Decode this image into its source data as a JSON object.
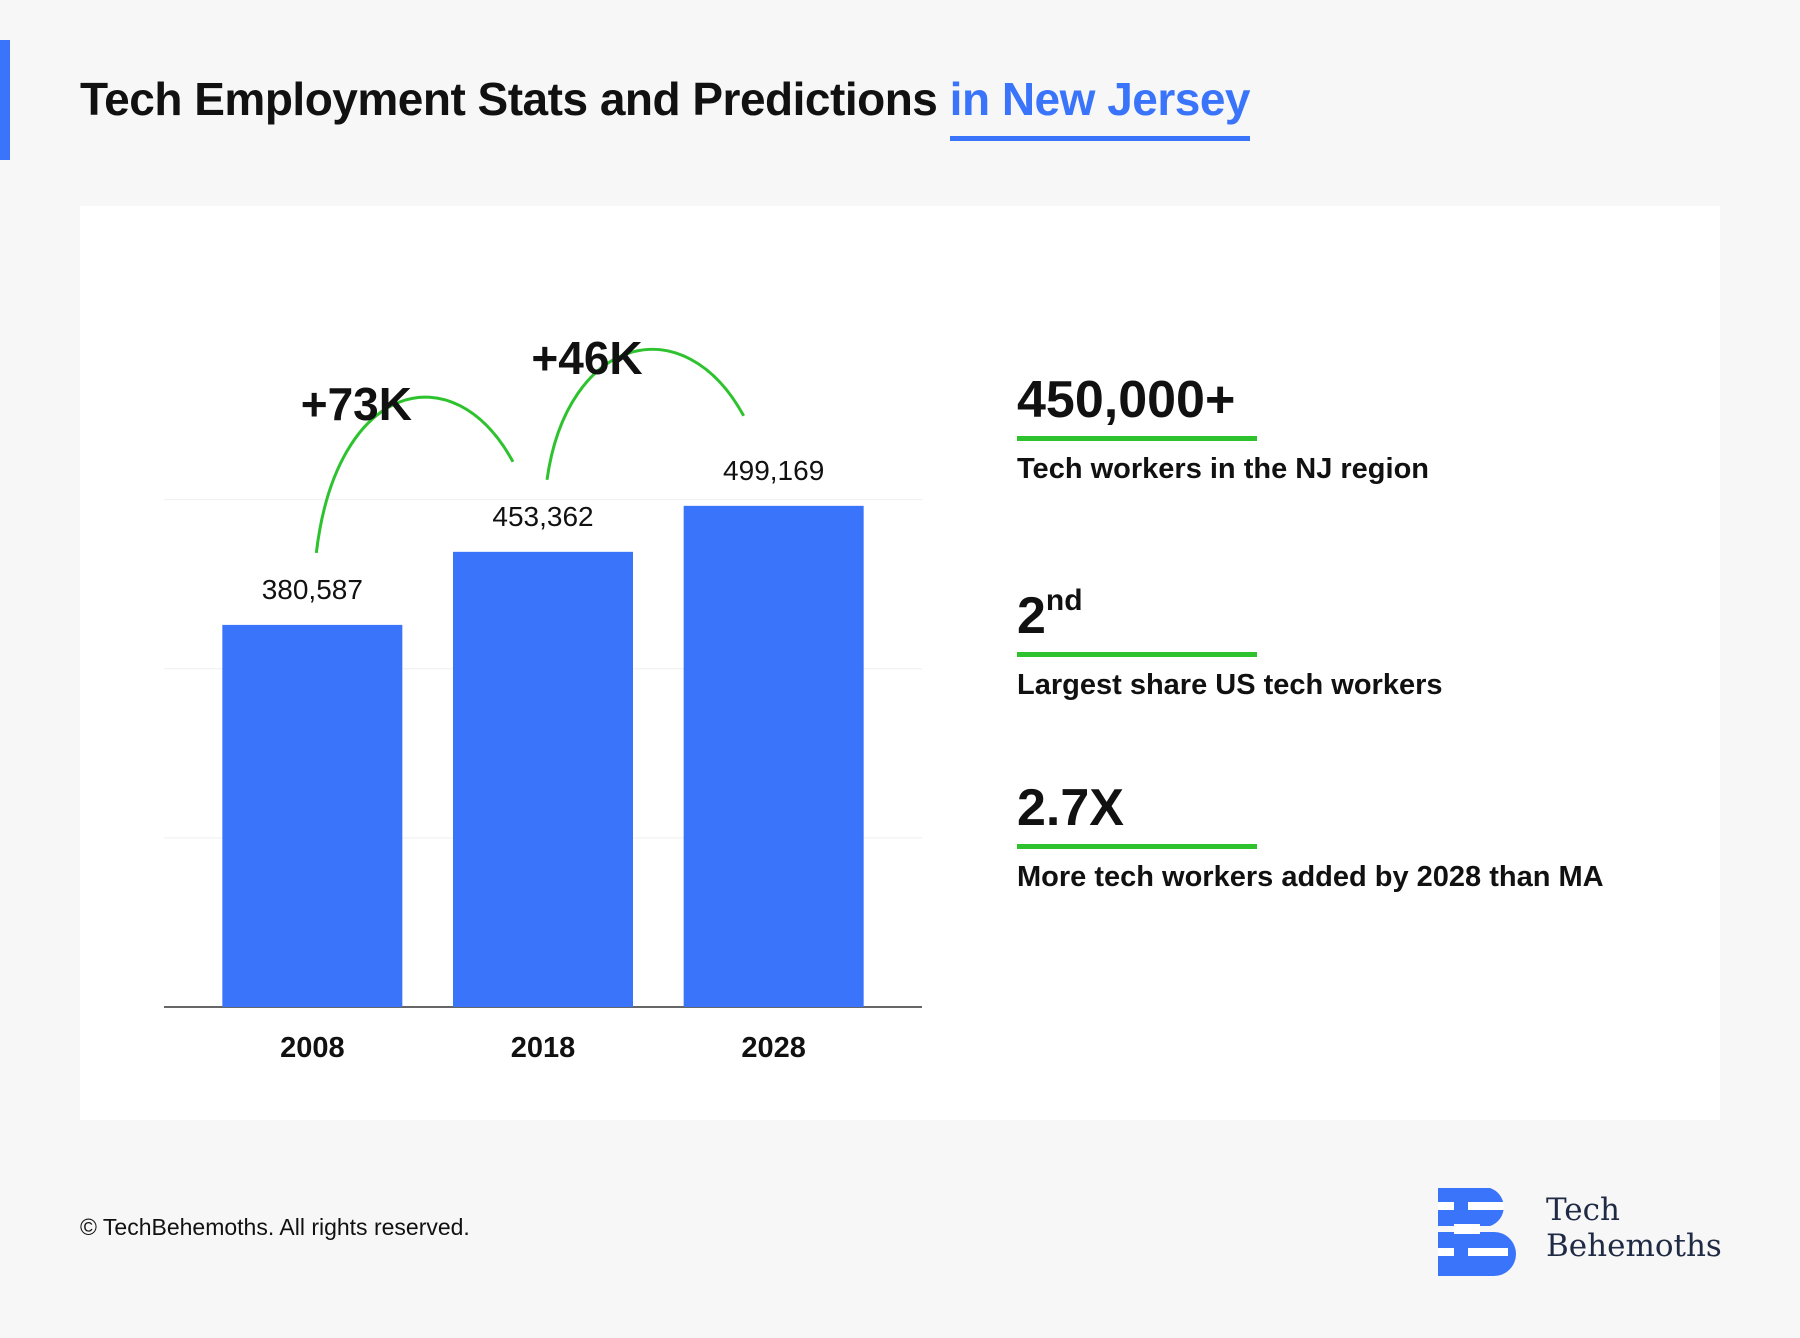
{
  "header": {
    "title_main": "Tech Employment Stats and Predictions",
    "title_highlight": "in New Jersey",
    "accent_color": "#3a74fb"
  },
  "chart_data": {
    "type": "bar",
    "title": "Tech Employment Stats and Predictions in New Jersey",
    "categories": [
      "2008",
      "2018",
      "2028"
    ],
    "values": [
      380587,
      453362,
      499169
    ],
    "value_labels": [
      "380,587",
      "453,362",
      "499,169"
    ],
    "ylim": [
      0,
      502000
    ],
    "grid": true,
    "bar_color": "#3a74fb",
    "annotations": [
      {
        "from": "2008",
        "to": "2018",
        "label": "+73K"
      },
      {
        "from": "2018",
        "to": "2028",
        "label": "+46K"
      }
    ],
    "annotation_color": "#2ec32e"
  },
  "stats": [
    {
      "value": "450,000+",
      "label": "Tech workers in the NJ region"
    },
    {
      "value": "2",
      "value_sup": "nd",
      "label": "Largest share US tech workers"
    },
    {
      "value": "2.7X",
      "label": "More tech workers added by 2028 than MA"
    }
  ],
  "footer": {
    "copyright": "© TechBehemoths. All rights reserved.",
    "logo_line1": "Tech",
    "logo_line2": "Behemoths",
    "logo_icon": "techbehemoths-logo-icon"
  }
}
